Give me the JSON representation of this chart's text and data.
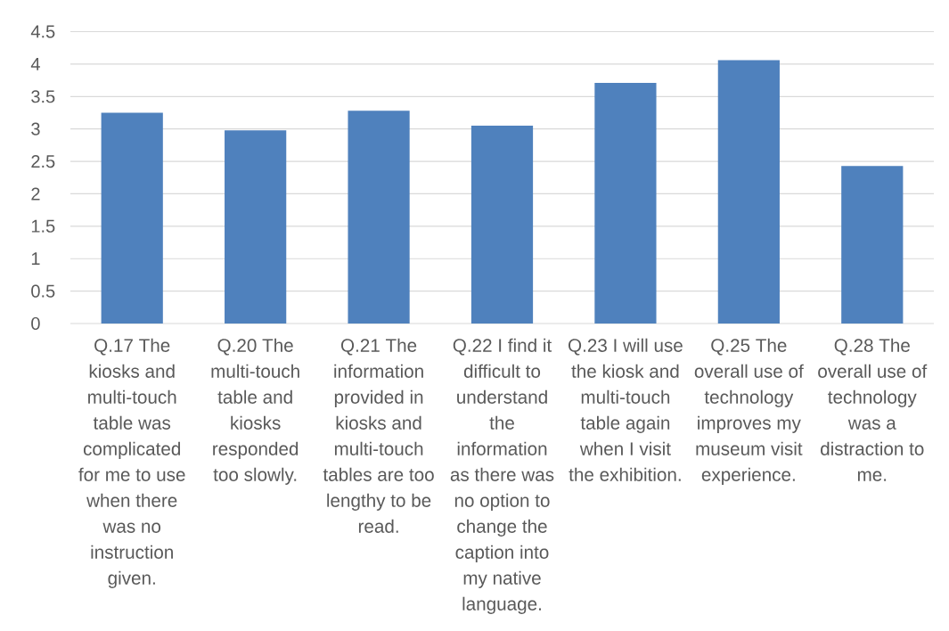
{
  "chart_data": {
    "type": "bar",
    "categories": [
      "Q.17 The kiosks and multi-touch table was complicated for me to use when there was no instruction given.",
      "Q.20 The multi-touch table and kiosks responded too slowly.",
      "Q.21 The information provided in kiosks and multi-touch tables are too lengthy to be read.",
      "Q.22 I find it difficult to understand the information as there was no option to change the caption into my native language.",
      "Q.23 I will use the kiosk and multi-touch table again when I visit the exhibition.",
      "Q.25 The overall use of technology improves my museum visit experience.",
      "Q.28 The overall use of technology was a distraction to me."
    ],
    "values": [
      3.25,
      2.98,
      3.28,
      3.05,
      3.71,
      4.06,
      2.43
    ],
    "color": "#4f81bd",
    "ylim": [
      0,
      4.5
    ],
    "yticks": [
      0,
      0.5,
      1,
      1.5,
      2,
      2.5,
      3,
      3.5,
      4,
      4.5
    ],
    "grid": "y"
  }
}
